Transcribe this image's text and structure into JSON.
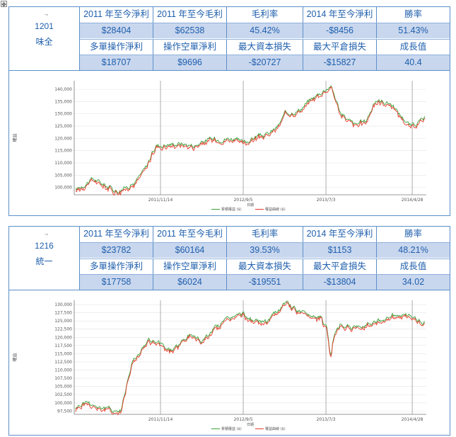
{
  "blocks": [
    {
      "code": "1201",
      "name": "味全",
      "header": [
        "2011 年至今淨利",
        "2011 年至今毛利",
        "毛利率",
        "2014 年至今淨利",
        "勝率"
      ],
      "values1": [
        "$28404",
        "$62538",
        "45.42%",
        "-$8456",
        "51.43%"
      ],
      "header2": [
        "多單操作淨利",
        "操作空單淨利",
        "最大資本損失",
        "最大平倉損失",
        "成長值"
      ],
      "values2": [
        "$18707",
        "$9696",
        "-$20727",
        "-$15827",
        "40.4"
      ],
      "chart_data": {
        "type": "line",
        "y_ticks": [
          "140,000",
          "135,000",
          "130,000",
          "125,000",
          "120,000",
          "115,000",
          "110,000",
          "105,000",
          "100,000"
        ],
        "ylim": [
          97000,
          143500
        ],
        "x_ticks": [
          "2011/11/14",
          "2012/9/5",
          "2013/7/3",
          "2014/4/28"
        ],
        "xlabel": "日期",
        "ylabel": "權益",
        "legend": [
          "累積權益 ($)",
          "權益曲線 ($)"
        ],
        "colors": [
          "#3aa03a",
          "#e83a2a"
        ],
        "series_x": [
          0,
          0.05,
          0.09,
          0.12,
          0.17,
          0.2,
          0.23,
          0.3,
          0.34,
          0.38,
          0.45,
          0.48,
          0.52,
          0.55,
          0.58,
          0.6,
          0.64,
          0.67,
          0.7,
          0.73,
          0.74,
          0.76,
          0.78,
          0.8,
          0.83,
          0.86,
          0.9,
          0.92,
          0.94,
          0.96,
          1.0
        ],
        "series_y": [
          99000,
          103500,
          100500,
          98500,
          102000,
          108000,
          117000,
          118000,
          117000,
          119500,
          120000,
          118000,
          121000,
          121500,
          125000,
          130000,
          131500,
          135500,
          138500,
          141500,
          138000,
          130000,
          127500,
          125500,
          127000,
          135500,
          134500,
          131000,
          128000,
          125000,
          128000
        ]
      }
    },
    {
      "code": "1216",
      "name": "統一",
      "header": [
        "2011 年至今淨利",
        "2011 年至今毛利",
        "毛利率",
        "2014 年至今淨利",
        "勝率"
      ],
      "values1": [
        "$23782",
        "$60164",
        "39.53%",
        "$1153",
        "48.21%"
      ],
      "header2": [
        "多單操作淨利",
        "操作空單淨利",
        "最大資本損失",
        "最大平倉損失",
        "成長值"
      ],
      "values2": [
        "$17758",
        "$6024",
        "-$19551",
        "-$13804",
        "34.02"
      ],
      "chart_data": {
        "type": "line",
        "y_ticks": [
          "130,000",
          "127,500",
          "125,000",
          "122,500",
          "120,000",
          "117,500",
          "115,000",
          "112,500",
          "110,000",
          "107,500",
          "105,000",
          "102,500",
          "100,000",
          "97,500"
        ],
        "ylim": [
          96500,
          131300
        ],
        "x_ticks": [
          "2011/11/14",
          "2012/9/5",
          "2013/7/3",
          "2014/4/28"
        ],
        "xlabel": "日期",
        "ylabel": "權益",
        "legend": [
          "累積權益 ($)",
          "權益曲線 ($)"
        ],
        "colors": [
          "#3aa03a",
          "#e83a2a"
        ],
        "series_x": [
          0,
          0.03,
          0.06,
          0.1,
          0.13,
          0.14,
          0.16,
          0.18,
          0.21,
          0.24,
          0.27,
          0.3,
          0.33,
          0.36,
          0.4,
          0.44,
          0.48,
          0.52,
          0.55,
          0.6,
          0.63,
          0.66,
          0.7,
          0.72,
          0.73,
          0.74,
          0.76,
          0.8,
          0.84,
          0.88,
          0.92,
          0.96,
          1.0
        ],
        "series_y": [
          98500,
          100500,
          99000,
          98000,
          97500,
          103000,
          112000,
          115000,
          119000,
          118000,
          116000,
          118000,
          121000,
          119000,
          123000,
          126000,
          127000,
          124500,
          125000,
          130500,
          128500,
          127000,
          126500,
          122500,
          113500,
          121000,
          124000,
          122500,
          124500,
          125500,
          127000,
          126000,
          124500
        ]
      }
    }
  ]
}
